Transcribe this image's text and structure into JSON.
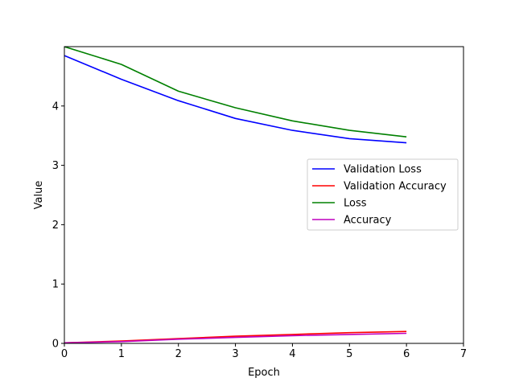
{
  "chart_data": {
    "type": "line",
    "xlabel": "Epoch",
    "ylabel": "Value",
    "xlim": [
      0,
      7
    ],
    "ylim": [
      0,
      5
    ],
    "xticks": [
      "0",
      "1",
      "2",
      "3",
      "4",
      "5",
      "6",
      "7"
    ],
    "yticks": [
      "0",
      "1",
      "2",
      "3",
      "4"
    ],
    "grid": false,
    "legend_position": "center-right",
    "x": [
      0,
      1,
      2,
      3,
      4,
      5,
      6
    ],
    "series": [
      {
        "name": "Validation Loss",
        "color": "#0000ff",
        "values": [
          4.85,
          4.45,
          4.09,
          3.79,
          3.59,
          3.45,
          3.38
        ]
      },
      {
        "name": "Validation Accuracy",
        "color": "#ff0000",
        "values": [
          0.01,
          0.04,
          0.08,
          0.12,
          0.15,
          0.18,
          0.2
        ]
      },
      {
        "name": "Loss",
        "color": "#008000",
        "values": [
          5.0,
          4.7,
          4.25,
          3.97,
          3.75,
          3.59,
          3.48
        ]
      },
      {
        "name": "Accuracy",
        "color": "#bf00bf",
        "values": [
          0.01,
          0.03,
          0.07,
          0.1,
          0.13,
          0.15,
          0.17
        ]
      }
    ]
  }
}
